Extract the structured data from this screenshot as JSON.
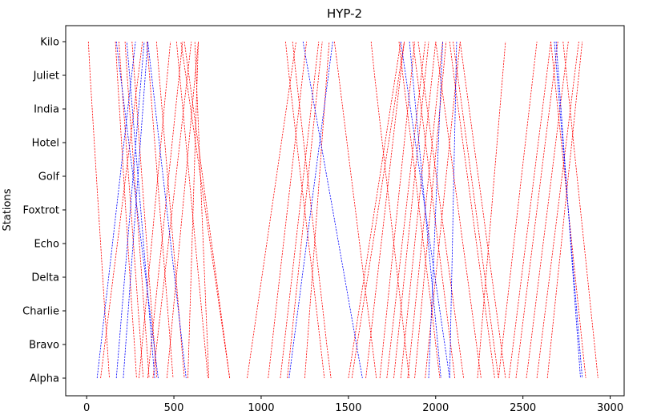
{
  "chart_data": {
    "type": "line",
    "title": "HYP-2",
    "xlabel": "",
    "ylabel": "Stations",
    "xlim": [
      -120,
      3080
    ],
    "x_ticks": [
      0,
      500,
      1000,
      1500,
      2000,
      2500,
      3000
    ],
    "x_tick_labels": [
      "0",
      "500",
      "1000",
      "1500",
      "2000",
      "2500",
      "3000"
    ],
    "stations": [
      "Alpha",
      "Bravo",
      "Charlie",
      "Delta",
      "Echo",
      "Foxtrot",
      "Golf",
      "Hotel",
      "India",
      "Juliet",
      "Kilo"
    ],
    "line_style": "dashed",
    "grid": false,
    "legend": "none",
    "colors": {
      "red": "#ff0000",
      "blue": "#0000ff"
    },
    "series": [
      {
        "color": "red",
        "direction": "down",
        "x": [
          10,
          20,
          32,
          44,
          56,
          68,
          80,
          92,
          104,
          118,
          130
        ]
      },
      {
        "color": "red",
        "direction": "down",
        "x": [
          165,
          176,
          188,
          200,
          212,
          224,
          236,
          248,
          260,
          274,
          286
        ]
      },
      {
        "color": "red",
        "direction": "down",
        "x": [
          185,
          198,
          212,
          226,
          240,
          254,
          268,
          282,
          296,
          310,
          324
        ]
      },
      {
        "color": "red",
        "direction": "down",
        "x": [
          220,
          232,
          246,
          260,
          274,
          288,
          302,
          316,
          330,
          344,
          358
        ]
      },
      {
        "color": "red",
        "direction": "down",
        "x": [
          260,
          274,
          288,
          302,
          316,
          330,
          344,
          358,
          372,
          388,
          402
        ]
      },
      {
        "color": "red",
        "direction": "down",
        "x": [
          345,
          360,
          375,
          390,
          405,
          420,
          435,
          450,
          465,
          480,
          495
        ]
      },
      {
        "color": "red",
        "direction": "down",
        "x": [
          400,
          416,
          432,
          448,
          464,
          480,
          496,
          512,
          528,
          544,
          560
        ]
      },
      {
        "color": "red",
        "direction": "down",
        "x": [
          515,
          533,
          551,
          569,
          587,
          605,
          623,
          641,
          659,
          677,
          695
        ]
      },
      {
        "color": "red",
        "direction": "down",
        "x": [
          560,
          586,
          612,
          638,
          664,
          690,
          716,
          742,
          768,
          794,
          820
        ]
      },
      {
        "color": "red",
        "direction": "down",
        "x": [
          1140,
          1160,
          1182,
          1204,
          1226,
          1250,
          1272,
          1296,
          1318,
          1340,
          1362
        ]
      },
      {
        "color": "red",
        "direction": "down",
        "x": [
          1180,
          1200,
          1222,
          1244,
          1266,
          1288,
          1310,
          1332,
          1354,
          1376,
          1400
        ]
      },
      {
        "color": "red",
        "direction": "down",
        "x": [
          1420,
          1444,
          1468,
          1492,
          1516,
          1540,
          1564,
          1588,
          1612,
          1636,
          1660
        ]
      },
      {
        "color": "red",
        "direction": "down",
        "x": [
          1630,
          1650,
          1672,
          1694,
          1716,
          1738,
          1760,
          1782,
          1804,
          1826,
          1848
        ]
      },
      {
        "color": "red",
        "direction": "down",
        "x": [
          1790,
          1812,
          1836,
          1860,
          1884,
          1906,
          1930,
          1954,
          1978,
          2000,
          2024
        ]
      },
      {
        "color": "red",
        "direction": "down",
        "x": [
          1870,
          1894,
          1918,
          1942,
          1966,
          1990,
          2014,
          2038,
          2062,
          2086,
          2110
        ]
      },
      {
        "color": "red",
        "direction": "down",
        "x": [
          1900,
          1926,
          1952,
          1978,
          2004,
          2030,
          2056,
          2082,
          2108,
          2134,
          2160
        ]
      },
      {
        "color": "red",
        "direction": "down",
        "x": [
          2000,
          2026,
          2052,
          2078,
          2104,
          2130,
          2156,
          2182,
          2208,
          2234,
          2260
        ]
      },
      {
        "color": "red",
        "direction": "down",
        "x": [
          2080,
          2104,
          2130,
          2156,
          2182,
          2208,
          2234,
          2260,
          2286,
          2312,
          2338
        ]
      },
      {
        "color": "red",
        "direction": "down",
        "x": [
          2100,
          2126,
          2152,
          2178,
          2204,
          2230,
          2256,
          2282,
          2308,
          2334,
          2360
        ]
      },
      {
        "color": "red",
        "direction": "down",
        "x": [
          2140,
          2166,
          2192,
          2218,
          2244,
          2270,
          2296,
          2322,
          2348,
          2374,
          2400
        ]
      },
      {
        "color": "red",
        "direction": "down",
        "x": [
          2660,
          2680,
          2700,
          2720,
          2740,
          2760,
          2780,
          2800,
          2820,
          2840,
          2860
        ]
      },
      {
        "color": "red",
        "direction": "down",
        "x": [
          2730,
          2750,
          2770,
          2790,
          2810,
          2830,
          2850,
          2870,
          2890,
          2910,
          2930
        ]
      },
      {
        "color": "red",
        "direction": "up",
        "x": [
          80,
          104,
          128,
          152,
          176,
          200,
          224,
          248,
          272,
          296,
          320
        ]
      },
      {
        "color": "red",
        "direction": "up",
        "x": [
          300,
          318,
          336,
          354,
          372,
          390,
          408,
          426,
          444,
          462,
          480
        ]
      },
      {
        "color": "red",
        "direction": "up",
        "x": [
          350,
          370,
          390,
          410,
          430,
          450,
          470,
          490,
          510,
          530,
          550
        ]
      },
      {
        "color": "red",
        "direction": "up",
        "x": [
          380,
          402,
          424,
          446,
          468,
          490,
          512,
          534,
          556,
          578,
          600
        ]
      },
      {
        "color": "red",
        "direction": "up",
        "x": [
          460,
          478,
          496,
          514,
          532,
          550,
          568,
          586,
          604,
          622,
          640
        ]
      },
      {
        "color": "red",
        "direction": "up",
        "x": [
          580,
          586,
          592,
          598,
          604,
          610,
          616,
          622,
          628,
          634,
          640
        ]
      },
      {
        "color": "red",
        "direction": "up",
        "x": [
          700,
          692,
          684,
          676,
          668,
          660,
          652,
          644,
          636,
          628,
          620
        ]
      },
      {
        "color": "red",
        "direction": "up",
        "x": [
          820,
          792,
          764,
          736,
          708,
          680,
          652,
          624,
          596,
          568,
          540
        ]
      },
      {
        "color": "red",
        "direction": "up",
        "x": [
          920,
          948,
          976,
          1004,
          1032,
          1060,
          1088,
          1116,
          1144,
          1172,
          1200
        ]
      },
      {
        "color": "red",
        "direction": "up",
        "x": [
          1040,
          1062,
          1084,
          1106,
          1128,
          1150,
          1172,
          1194,
          1216,
          1238,
          1260
        ]
      },
      {
        "color": "red",
        "direction": "up",
        "x": [
          1110,
          1132,
          1154,
          1176,
          1198,
          1220,
          1242,
          1264,
          1286,
          1308,
          1330
        ]
      },
      {
        "color": "red",
        "direction": "up",
        "x": [
          1150,
          1170,
          1190,
          1210,
          1230,
          1250,
          1270,
          1290,
          1310,
          1330,
          1350
        ]
      },
      {
        "color": "red",
        "direction": "up",
        "x": [
          1250,
          1264,
          1278,
          1292,
          1306,
          1320,
          1334,
          1348,
          1362,
          1376,
          1390
        ]
      },
      {
        "color": "red",
        "direction": "up",
        "x": [
          1500,
          1530,
          1560,
          1590,
          1620,
          1650,
          1680,
          1710,
          1740,
          1770,
          1800
        ]
      },
      {
        "color": "red",
        "direction": "up",
        "x": [
          1520,
          1550,
          1580,
          1610,
          1640,
          1670,
          1700,
          1730,
          1760,
          1790,
          1820
        ]
      },
      {
        "color": "red",
        "direction": "up",
        "x": [
          1600,
          1622,
          1644,
          1666,
          1688,
          1710,
          1732,
          1754,
          1776,
          1798,
          1820
        ]
      },
      {
        "color": "red",
        "direction": "up",
        "x": [
          1680,
          1700,
          1720,
          1740,
          1760,
          1780,
          1800,
          1820,
          1840,
          1860,
          1880
        ]
      },
      {
        "color": "red",
        "direction": "up",
        "x": [
          1720,
          1742,
          1764,
          1786,
          1808,
          1830,
          1852,
          1874,
          1896,
          1918,
          1940
        ]
      },
      {
        "color": "red",
        "direction": "up",
        "x": [
          1760,
          1780,
          1800,
          1820,
          1840,
          1860,
          1880,
          1900,
          1920,
          1940,
          1960
        ]
      },
      {
        "color": "red",
        "direction": "up",
        "x": [
          1800,
          1820,
          1840,
          1860,
          1880,
          1900,
          1920,
          1940,
          1960,
          1980,
          2000
        ]
      },
      {
        "color": "red",
        "direction": "up",
        "x": [
          1840,
          1860,
          1880,
          1900,
          1920,
          1940,
          1960,
          1980,
          2000,
          2020,
          2040
        ]
      },
      {
        "color": "red",
        "direction": "up",
        "x": [
          1880,
          1898,
          1916,
          1934,
          1952,
          1970,
          1988,
          2006,
          2024,
          2042,
          2060
        ]
      },
      {
        "color": "red",
        "direction": "up",
        "x": [
          1940,
          1960,
          1980,
          2000,
          2020,
          2040,
          2060,
          2080,
          2100,
          2120,
          2140
        ]
      },
      {
        "color": "red",
        "direction": "up",
        "x": [
          2240,
          2256,
          2272,
          2288,
          2304,
          2320,
          2336,
          2352,
          2368,
          2384,
          2400
        ]
      },
      {
        "color": "red",
        "direction": "up",
        "x": [
          2360,
          2382,
          2404,
          2426,
          2448,
          2470,
          2492,
          2514,
          2536,
          2558,
          2580
        ]
      },
      {
        "color": "red",
        "direction": "up",
        "x": [
          2420,
          2444,
          2468,
          2492,
          2516,
          2540,
          2564,
          2588,
          2612,
          2636,
          2660
        ]
      },
      {
        "color": "red",
        "direction": "up",
        "x": [
          2460,
          2484,
          2508,
          2532,
          2556,
          2580,
          2604,
          2628,
          2652,
          2676,
          2700
        ]
      },
      {
        "color": "red",
        "direction": "up",
        "x": [
          2520,
          2544,
          2568,
          2592,
          2616,
          2640,
          2664,
          2688,
          2712,
          2736,
          2760
        ]
      },
      {
        "color": "red",
        "direction": "up",
        "x": [
          2580,
          2604,
          2628,
          2652,
          2676,
          2700,
          2724,
          2748,
          2772,
          2796,
          2820
        ]
      },
      {
        "color": "red",
        "direction": "up",
        "x": [
          2640,
          2660,
          2680,
          2700,
          2720,
          2740,
          2760,
          2780,
          2800,
          2820,
          2840
        ]
      },
      {
        "color": "blue",
        "direction": "up",
        "x": [
          60,
          82,
          104,
          126,
          148,
          170,
          192,
          214,
          236,
          258,
          280
        ]
      },
      {
        "color": "blue",
        "direction": "up",
        "x": [
          170,
          186,
          202,
          218,
          234,
          250,
          266,
          282,
          298,
          314,
          330
        ]
      },
      {
        "color": "blue",
        "direction": "up",
        "x": [
          210,
          224,
          238,
          252,
          266,
          280,
          294,
          308,
          322,
          336,
          350
        ]
      },
      {
        "color": "blue",
        "direction": "up",
        "x": [
          390,
          374,
          358,
          342,
          326,
          310,
          294,
          278,
          262,
          246,
          230
        ]
      },
      {
        "color": "blue",
        "direction": "up",
        "x": [
          1160,
          1185,
          1210,
          1235,
          1260,
          1285,
          1310,
          1335,
          1360,
          1385,
          1410
        ]
      },
      {
        "color": "blue",
        "direction": "up",
        "x": [
          1960,
          1968,
          1976,
          1984,
          1992,
          2000,
          2008,
          2016,
          2024,
          2032,
          2040
        ]
      },
      {
        "color": "blue",
        "direction": "up",
        "x": [
          2080,
          2084,
          2088,
          2092,
          2096,
          2100,
          2104,
          2108,
          2112,
          2116,
          2120
        ]
      },
      {
        "color": "blue",
        "direction": "down",
        "x": [
          170,
          194,
          218,
          242,
          266,
          290,
          314,
          338,
          362,
          386,
          410
        ]
      },
      {
        "color": "blue",
        "direction": "down",
        "x": [
          350,
          372,
          394,
          416,
          438,
          460,
          482,
          504,
          526,
          548,
          570
        ]
      },
      {
        "color": "blue",
        "direction": "down",
        "x": [
          1240,
          1274,
          1308,
          1342,
          1376,
          1410,
          1444,
          1478,
          1512,
          1546,
          1580
        ]
      },
      {
        "color": "blue",
        "direction": "down",
        "x": [
          1800,
          1828,
          1856,
          1884,
          1912,
          1940,
          1968,
          1996,
          2024,
          2052,
          2080
        ]
      },
      {
        "color": "blue",
        "direction": "down",
        "x": [
          1850,
          1868,
          1886,
          1904,
          1922,
          1940,
          1958,
          1976,
          1994,
          2012,
          2030
        ]
      },
      {
        "color": "blue",
        "direction": "down",
        "x": [
          2680,
          2696,
          2712,
          2728,
          2744,
          2760,
          2776,
          2792,
          2808,
          2824,
          2840
        ]
      },
      {
        "color": "blue",
        "direction": "down",
        "x": [
          2690,
          2704,
          2718,
          2732,
          2746,
          2760,
          2774,
          2788,
          2802,
          2816,
          2830
        ]
      }
    ]
  }
}
